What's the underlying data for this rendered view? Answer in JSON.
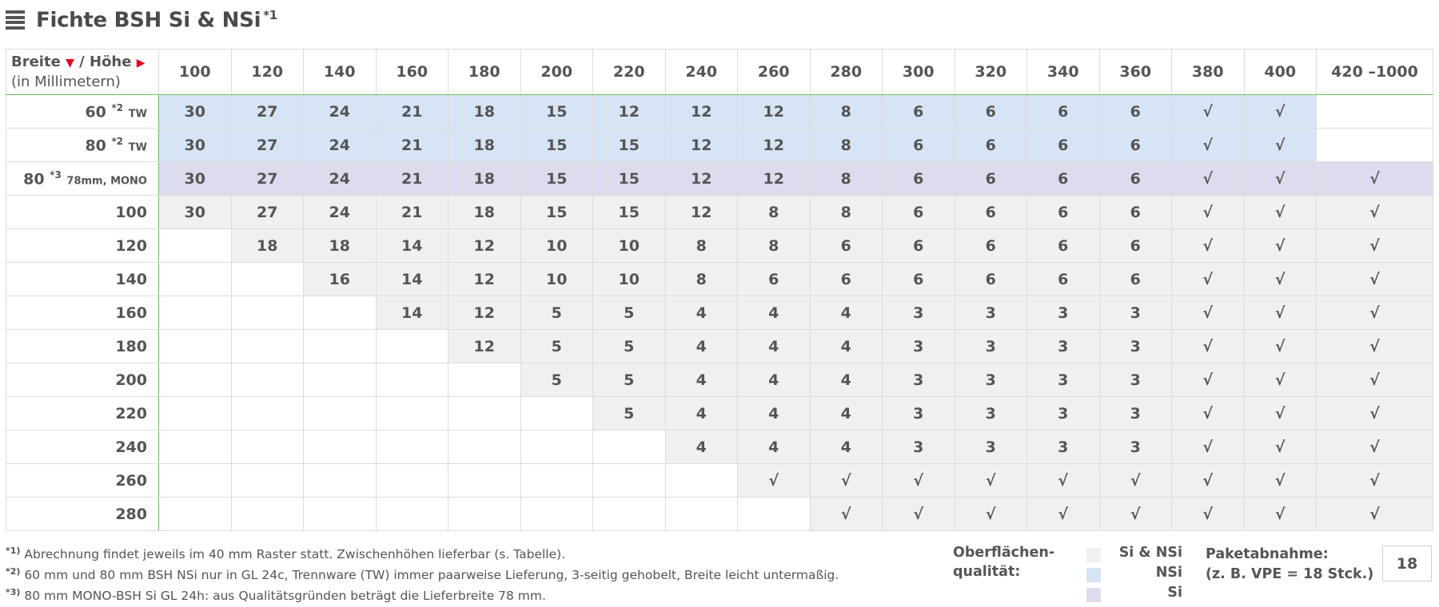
{
  "title": "Fichte BSH Si & NSi",
  "title_note": "*1",
  "corner": {
    "breite": "Breite",
    "hoehe": "Höhe",
    "sub": "(in Millimetern)",
    "sep": "/"
  },
  "columns": [
    "100",
    "120",
    "140",
    "160",
    "180",
    "200",
    "220",
    "240",
    "260",
    "280",
    "300",
    "320",
    "340",
    "360",
    "380",
    "400",
    "420 –1000"
  ],
  "rows": [
    {
      "label": "60",
      "note": "*2",
      "suffix": "TW",
      "type": "nsi",
      "cells": [
        "30",
        "27",
        "24",
        "21",
        "18",
        "15",
        "12",
        "12",
        "12",
        "8",
        "6",
        "6",
        "6",
        "6",
        "√",
        "√",
        ""
      ]
    },
    {
      "label": "80",
      "note": "*2",
      "suffix": "TW",
      "type": "nsi",
      "cells": [
        "30",
        "27",
        "24",
        "21",
        "18",
        "15",
        "15",
        "12",
        "12",
        "8",
        "6",
        "6",
        "6",
        "6",
        "√",
        "√",
        ""
      ]
    },
    {
      "label": "80",
      "note": "*3",
      "suffix": "78mm, MONO",
      "type": "mono",
      "cells": [
        "30",
        "27",
        "24",
        "21",
        "18",
        "15",
        "15",
        "12",
        "12",
        "8",
        "6",
        "6",
        "6",
        "6",
        "√",
        "√",
        "√"
      ]
    },
    {
      "label": "100",
      "note": "",
      "suffix": "",
      "type": "si",
      "cells": [
        "30",
        "27",
        "24",
        "21",
        "18",
        "15",
        "15",
        "12",
        "8",
        "8",
        "6",
        "6",
        "6",
        "6",
        "√",
        "√",
        "√"
      ]
    },
    {
      "label": "120",
      "note": "",
      "suffix": "",
      "type": "si",
      "cells": [
        "",
        "18",
        "18",
        "14",
        "12",
        "10",
        "10",
        "8",
        "8",
        "6",
        "6",
        "6",
        "6",
        "6",
        "√",
        "√",
        "√"
      ]
    },
    {
      "label": "140",
      "note": "",
      "suffix": "",
      "type": "si",
      "cells": [
        "",
        "",
        "16",
        "14",
        "12",
        "10",
        "10",
        "8",
        "6",
        "6",
        "6",
        "6",
        "6",
        "6",
        "√",
        "√",
        "√"
      ]
    },
    {
      "label": "160",
      "note": "",
      "suffix": "",
      "type": "si",
      "cells": [
        "",
        "",
        "",
        "14",
        "12",
        "5",
        "5",
        "4",
        "4",
        "4",
        "3",
        "3",
        "3",
        "3",
        "√",
        "√",
        "√"
      ]
    },
    {
      "label": "180",
      "note": "",
      "suffix": "",
      "type": "si",
      "cells": [
        "",
        "",
        "",
        "",
        "12",
        "5",
        "5",
        "4",
        "4",
        "4",
        "3",
        "3",
        "3",
        "3",
        "√",
        "√",
        "√"
      ]
    },
    {
      "label": "200",
      "note": "",
      "suffix": "",
      "type": "si",
      "cells": [
        "",
        "",
        "",
        "",
        "",
        "5",
        "5",
        "4",
        "4",
        "4",
        "3",
        "3",
        "3",
        "3",
        "√",
        "√",
        "√"
      ]
    },
    {
      "label": "220",
      "note": "",
      "suffix": "",
      "type": "si",
      "cells": [
        "",
        "",
        "",
        "",
        "",
        "",
        "5",
        "4",
        "4",
        "4",
        "3",
        "3",
        "3",
        "3",
        "√",
        "√",
        "√"
      ]
    },
    {
      "label": "240",
      "note": "",
      "suffix": "",
      "type": "si",
      "cells": [
        "",
        "",
        "",
        "",
        "",
        "",
        "",
        "4",
        "4",
        "4",
        "3",
        "3",
        "3",
        "3",
        "√",
        "√",
        "√"
      ]
    },
    {
      "label": "260",
      "note": "",
      "suffix": "",
      "type": "si",
      "cells": [
        "",
        "",
        "",
        "",
        "",
        "",
        "",
        "",
        "√",
        "√",
        "√",
        "√",
        "√",
        "√",
        "√",
        "√",
        "√"
      ]
    },
    {
      "label": "280",
      "note": "",
      "suffix": "",
      "type": "si",
      "cells": [
        "",
        "",
        "",
        "",
        "",
        "",
        "",
        "",
        "",
        "√",
        "√",
        "√",
        "√",
        "√",
        "√",
        "√",
        "√"
      ]
    }
  ],
  "footnotes": [
    {
      "mark": "*1)",
      "text": "Abrechnung findet jeweils im 40 mm Raster statt. Zwischenhöhen lieferbar (s. Tabelle)."
    },
    {
      "mark": "*2)",
      "text": "60 mm und 80 mm BSH NSi nur in GL 24c, Trennware (TW) immer paarweise Lieferung, 3-seitig gehobelt, Breite leicht untermaßig."
    },
    {
      "mark": "*3)",
      "text": "80 mm MONO-BSH Si GL 24h: aus Qualitätsgründen beträgt die Lieferbreite 78 mm."
    }
  ],
  "legend": {
    "label_line1": "Oberflächen-",
    "label_line2": "qualität:",
    "items": [
      {
        "text": "Si & NSi",
        "color": "#f0f0f0"
      },
      {
        "text": "NSi",
        "color": "#d6e4f5"
      },
      {
        "text": "Si",
        "color": "#dddcef"
      }
    ]
  },
  "paket": {
    "line1": "Paketabnahme:",
    "line2": "(z. B. VPE = 18 Stck.)",
    "value": "18"
  },
  "colors": {
    "border_green": "#6cc15a",
    "accent_red": "#e3001b"
  }
}
